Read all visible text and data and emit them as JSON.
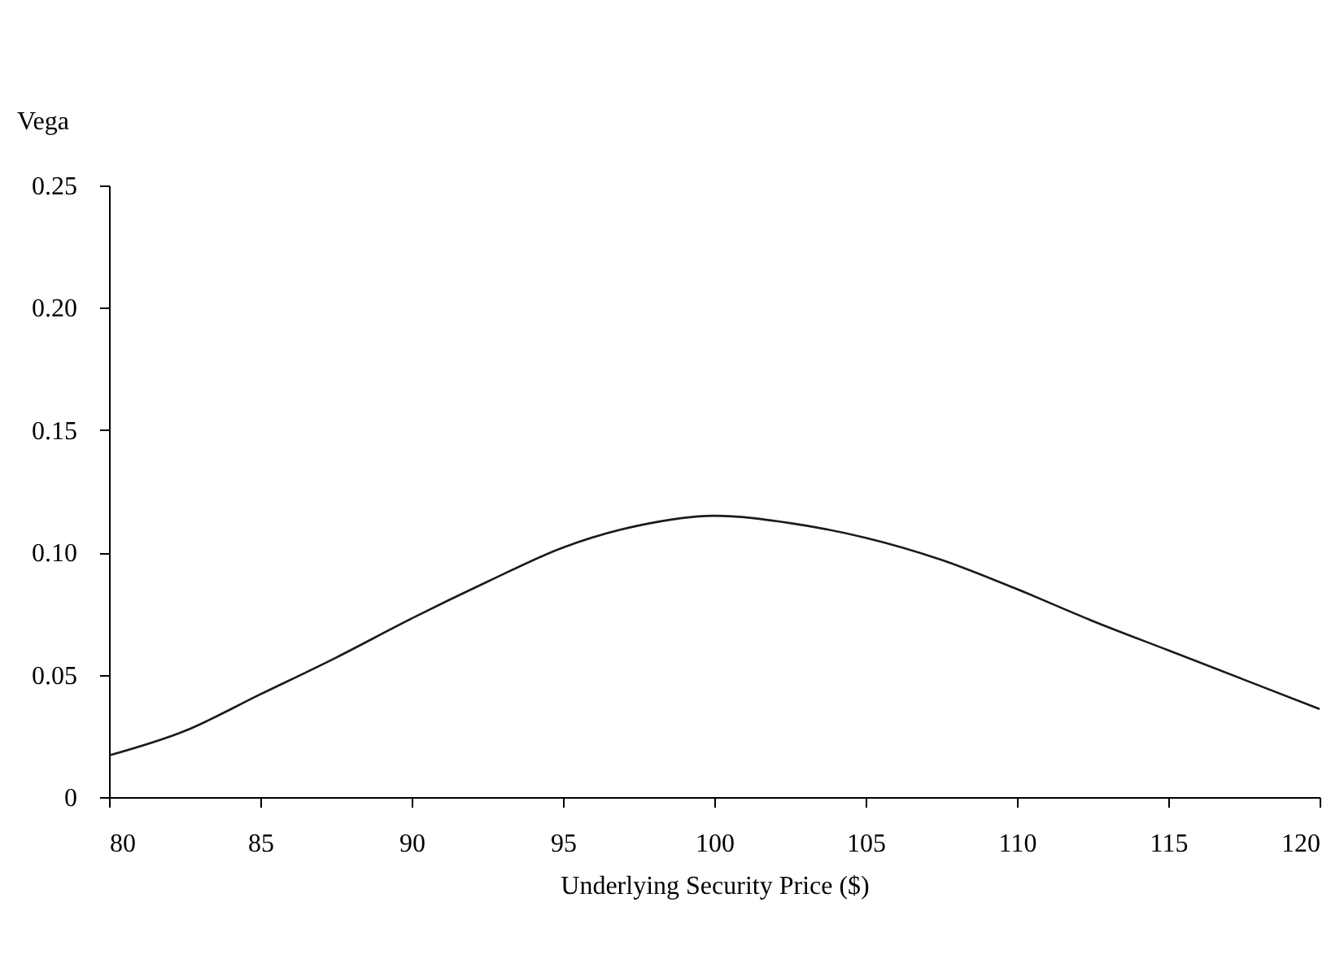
{
  "chart_data": {
    "type": "line",
    "xlabel": "Underlying Security Price ($)",
    "ylabel": "Vega",
    "x": [
      80,
      82.5,
      85,
      87.5,
      90,
      92.5,
      95,
      97.5,
      100,
      102.5,
      105,
      107.5,
      110,
      112.5,
      115,
      117.5,
      120
    ],
    "series": [
      {
        "color": "#1a1a1a",
        "values": [
          0.017,
          0.027,
          0.042,
          0.057,
          0.073,
          0.088,
          0.102,
          0.111,
          0.115,
          0.112,
          0.106,
          0.097,
          0.085,
          0.072,
          0.06,
          0.048,
          0.036
        ]
      }
    ],
    "xlim": [
      80,
      120
    ],
    "xticks": [
      80,
      85,
      90,
      95,
      100,
      105,
      110,
      115,
      120
    ],
    "ylim": [
      0,
      0.25
    ],
    "yticks": [
      0,
      0.05,
      {
        "value": 0.1,
        "label": "0.10"
      },
      0.15,
      {
        "value": 0.2,
        "label": "0.20"
      },
      0.25
    ],
    "grid": false,
    "marker": "none",
    "line_style": "solid"
  }
}
